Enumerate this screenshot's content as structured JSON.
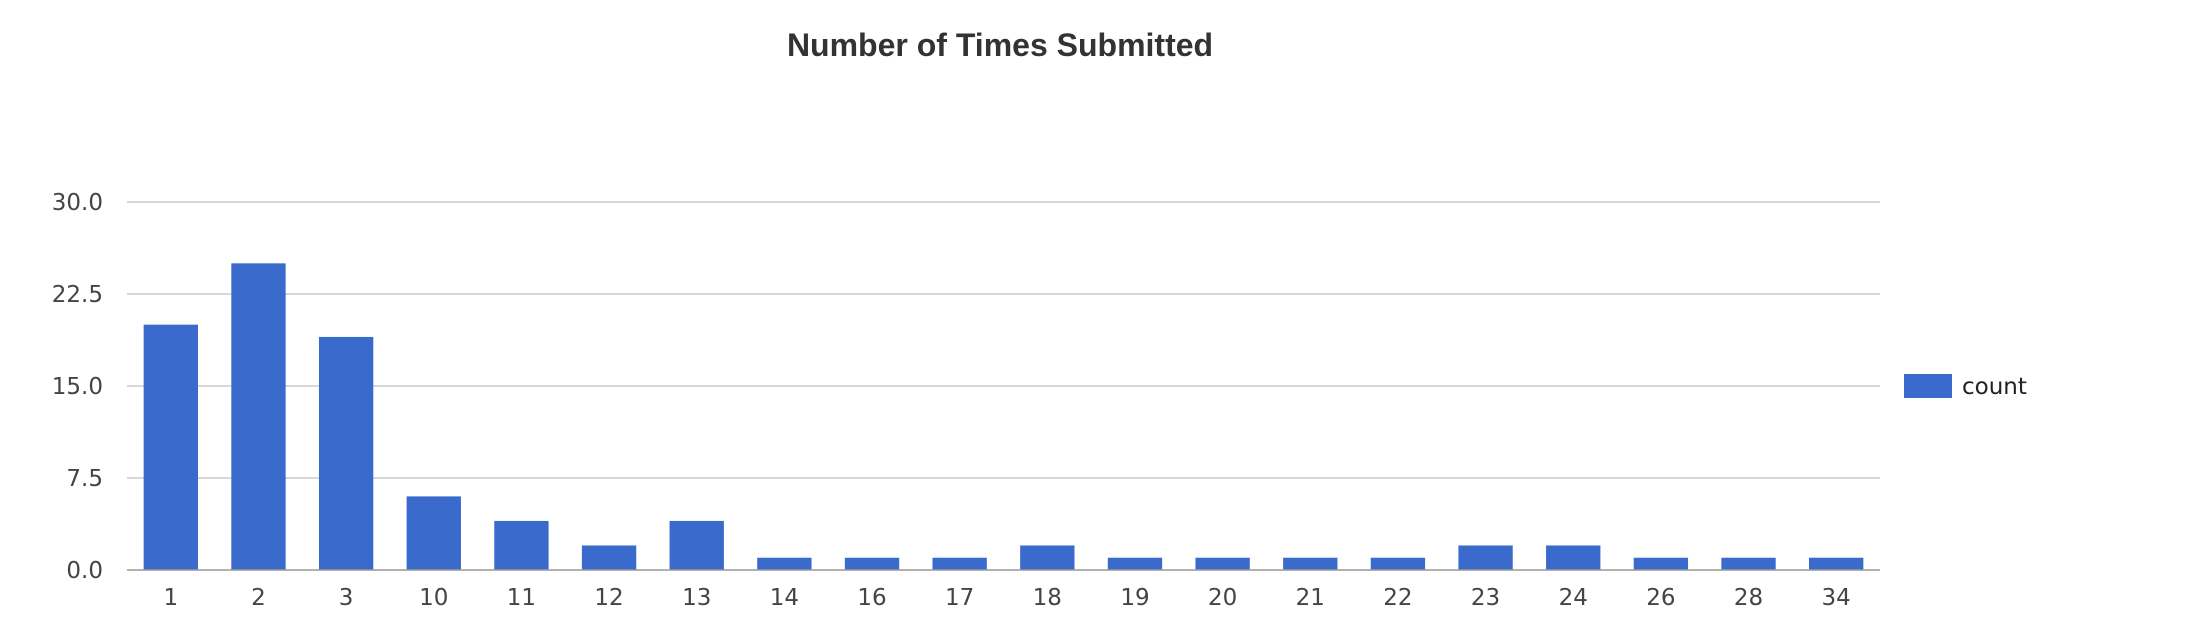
{
  "chart_data": {
    "type": "bar",
    "title": "Number of Times Submitted",
    "xlabel": "",
    "ylabel": "",
    "categories": [
      "1",
      "2",
      "3",
      "10",
      "11",
      "12",
      "13",
      "14",
      "16",
      "17",
      "18",
      "19",
      "20",
      "21",
      "22",
      "23",
      "24",
      "26",
      "28",
      "34"
    ],
    "series": [
      {
        "name": "count",
        "color": "#3a6bcc",
        "values": [
          20,
          25,
          19,
          6,
          4,
          2,
          4,
          1,
          1,
          1,
          2,
          1,
          1,
          1,
          1,
          2,
          2,
          1,
          1,
          1
        ]
      }
    ],
    "ylim": [
      0,
      30
    ],
    "yticks": [
      "0.0",
      "7.5",
      "15.0",
      "22.5",
      "30.0"
    ],
    "grid": true,
    "legend_position": "right"
  }
}
